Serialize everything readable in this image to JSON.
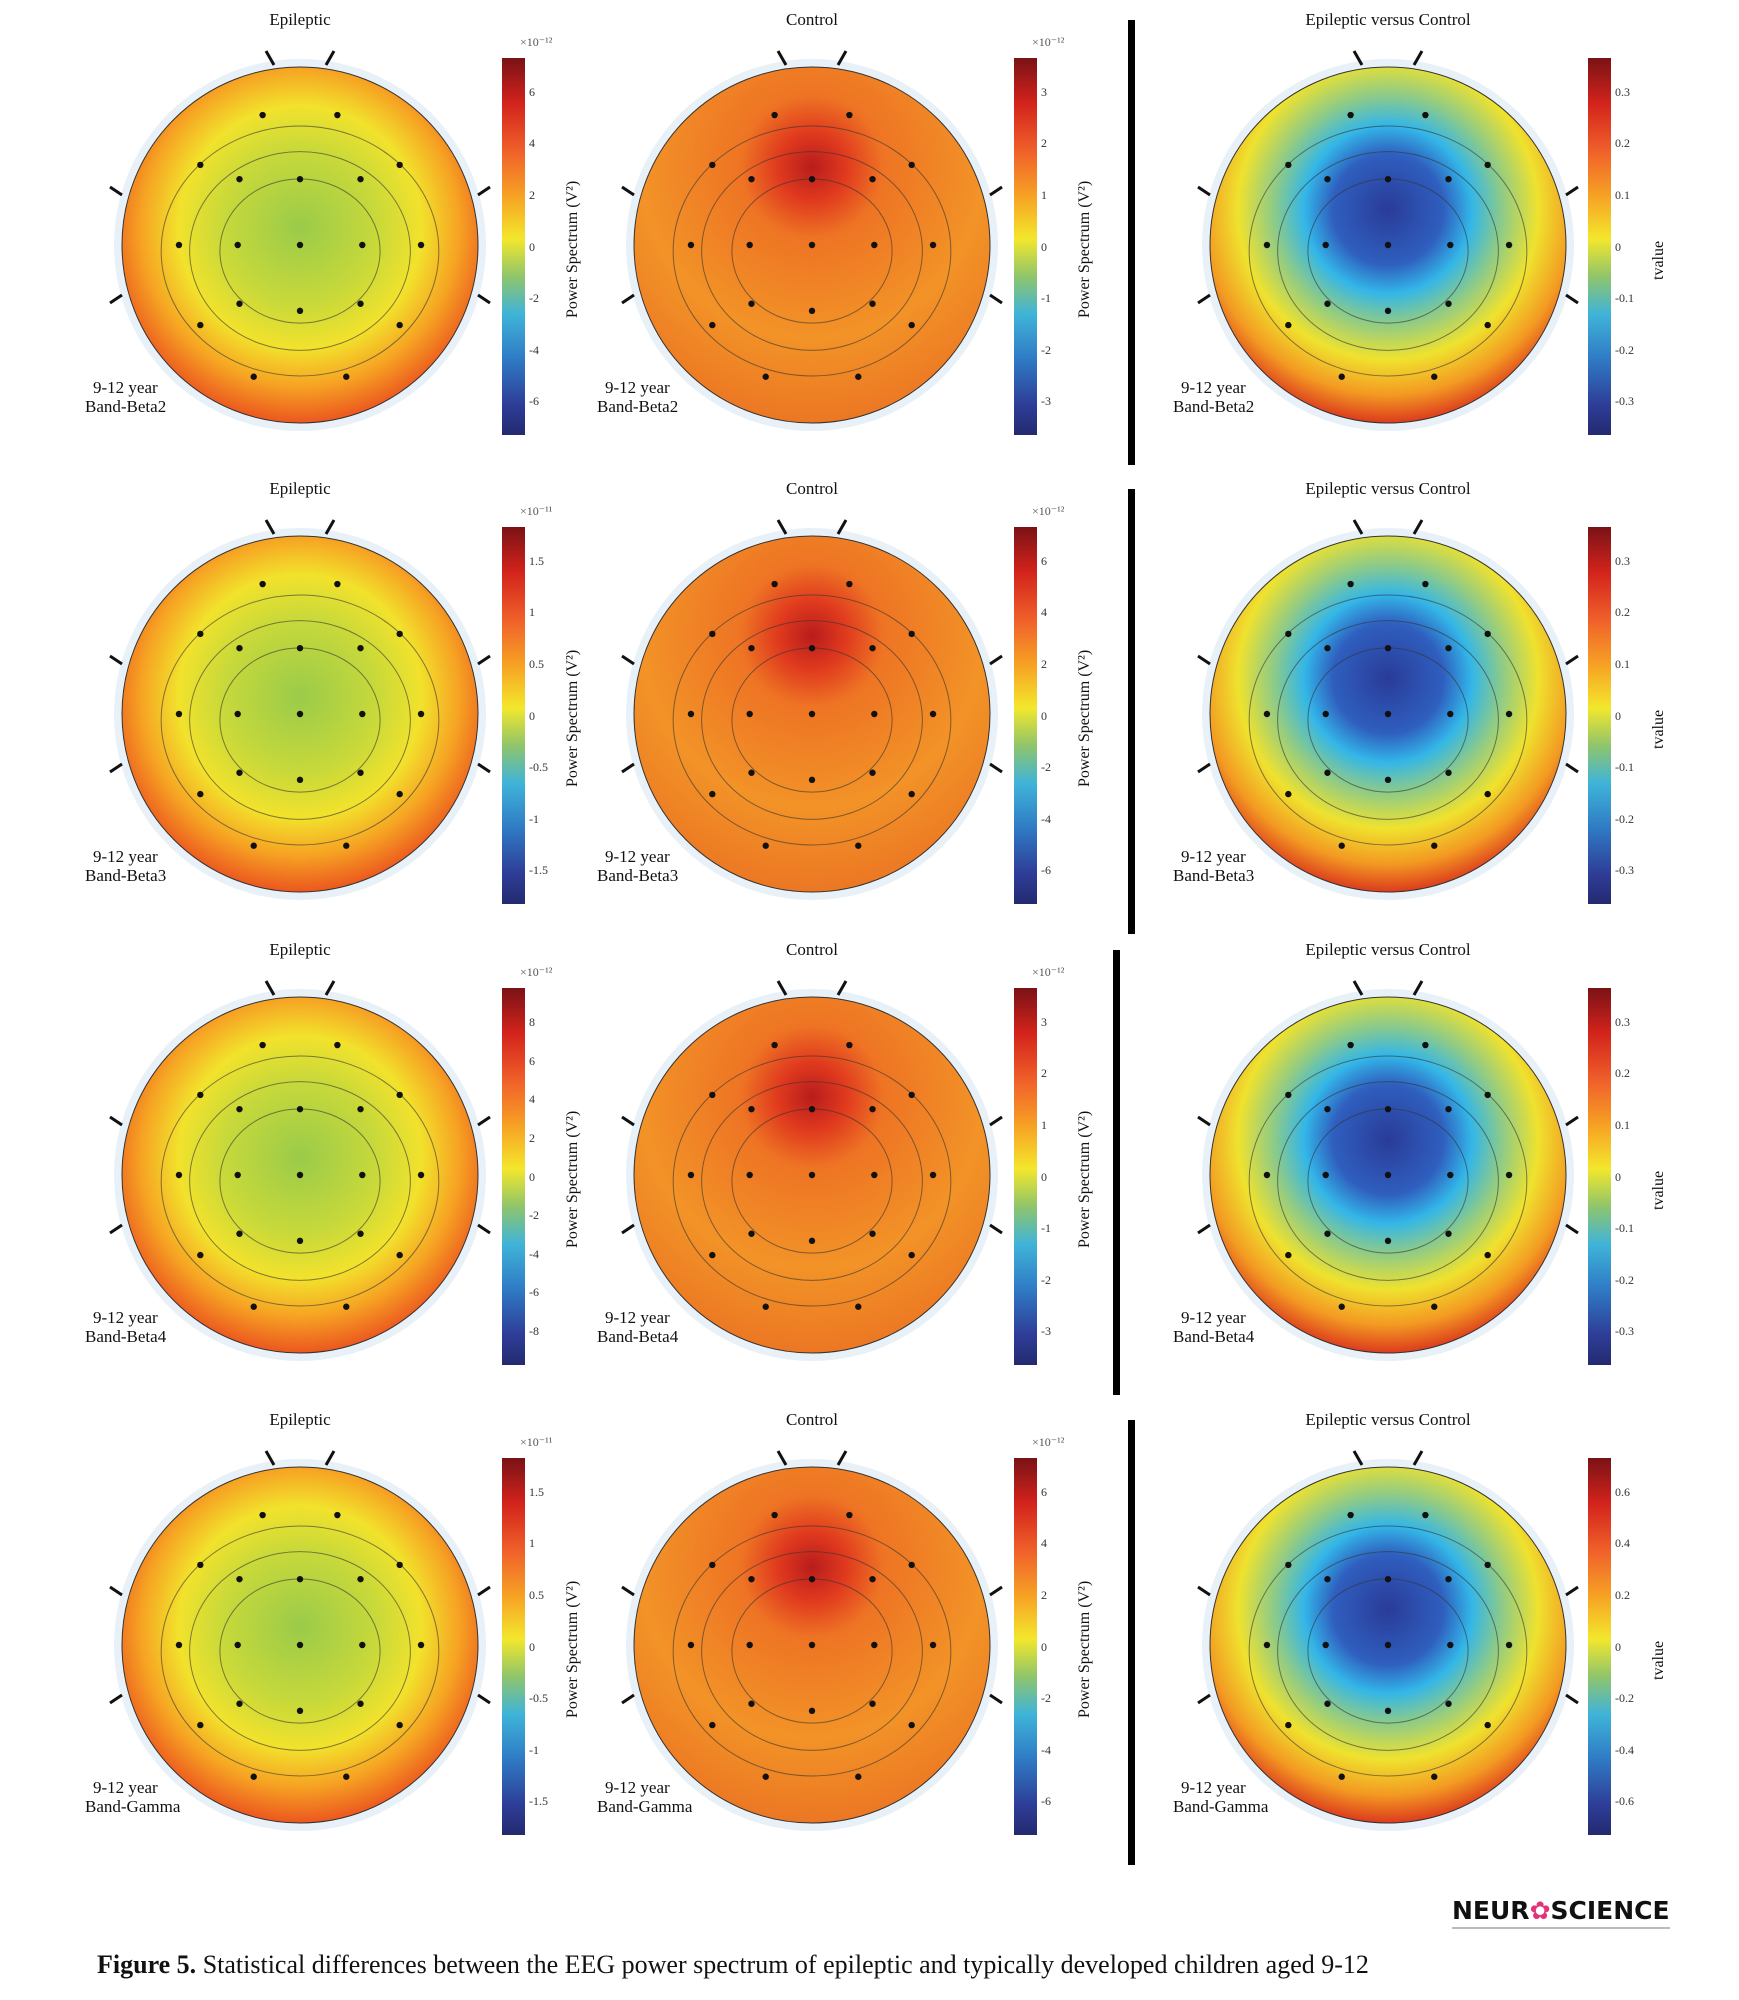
{
  "figure": {
    "rows": [
      {
        "age": "9-12 year",
        "band": "Band-Beta2",
        "panels": [
          {
            "kind": "epileptic",
            "title": "Epileptic",
            "cb_label": "Power Spectrum (V²)",
            "exponent": "×10⁻¹²",
            "ticks": [
              "6",
              "4",
              "2",
              "0",
              "-2",
              "-4",
              "-6"
            ]
          },
          {
            "kind": "control",
            "title": "Control",
            "cb_label": "Power Spectrum (V²)",
            "exponent": "×10⁻¹²",
            "ticks": [
              "3",
              "2",
              "1",
              "0",
              "-1",
              "-2",
              "-3"
            ]
          },
          {
            "kind": "versus",
            "title": "Epileptic versus Control",
            "cb_label": "tvalue",
            "exponent": "",
            "ticks": [
              "0.3",
              "0.2",
              "0.1",
              "0",
              "-0.1",
              "-0.2",
              "-0.3"
            ]
          }
        ]
      },
      {
        "age": "9-12 year",
        "band": "Band-Beta3",
        "panels": [
          {
            "kind": "epileptic",
            "title": "Epileptic",
            "cb_label": "Power Spectrum (V²)",
            "exponent": "×10⁻¹¹",
            "ticks": [
              "1.5",
              "1",
              "0.5",
              "0",
              "-0.5",
              "-1",
              "-1.5"
            ]
          },
          {
            "kind": "control",
            "title": "Control",
            "cb_label": "Power Spectrum (V²)",
            "exponent": "×10⁻¹²",
            "ticks": [
              "6",
              "4",
              "2",
              "0",
              "-2",
              "-4",
              "-6"
            ]
          },
          {
            "kind": "versus",
            "title": "Epileptic versus Control",
            "cb_label": "tvalue",
            "exponent": "",
            "ticks": [
              "0.3",
              "0.2",
              "0.1",
              "0",
              "-0.1",
              "-0.2",
              "-0.3"
            ]
          }
        ]
      },
      {
        "age": "9-12 year",
        "band": "Band-Beta4",
        "panels": [
          {
            "kind": "epileptic",
            "title": "Epileptic",
            "cb_label": "Power Spectrum (V²)",
            "exponent": "×10⁻¹²",
            "ticks": [
              "8",
              "6",
              "4",
              "2",
              "0",
              "-2",
              "-4",
              "-6",
              "-8"
            ]
          },
          {
            "kind": "control",
            "title": "Control",
            "cb_label": "Power Spectrum (V²)",
            "exponent": "×10⁻¹²",
            "ticks": [
              "3",
              "2",
              "1",
              "0",
              "-1",
              "-2",
              "-3"
            ]
          },
          {
            "kind": "versus",
            "title": "Epileptic versus Control",
            "cb_label": "tvalue",
            "exponent": "",
            "ticks": [
              "0.3",
              "0.2",
              "0.1",
              "0",
              "-0.1",
              "-0.2",
              "-0.3"
            ]
          }
        ]
      },
      {
        "age": "9-12 year",
        "band": "Band-Gamma",
        "panels": [
          {
            "kind": "epileptic",
            "title": "Epileptic",
            "cb_label": "Power Spectrum (V²)",
            "exponent": "×10⁻¹¹",
            "ticks": [
              "1.5",
              "1",
              "0.5",
              "0",
              "-0.5",
              "-1",
              "-1.5"
            ]
          },
          {
            "kind": "control",
            "title": "Control",
            "cb_label": "Power Spectrum (V²)",
            "exponent": "×10⁻¹²",
            "ticks": [
              "6",
              "4",
              "2",
              "0",
              "-2",
              "-4",
              "-6"
            ]
          },
          {
            "kind": "versus",
            "title": "Epileptic versus Control",
            "cb_label": "tvalue",
            "exponent": "",
            "ticks": [
              "0.6",
              "0.4",
              "0.2",
              "0",
              "-0.2",
              "-0.4",
              "-0.6"
            ]
          }
        ]
      }
    ]
  },
  "logo": {
    "left": "NEUR",
    "right": "SCIENCE"
  },
  "caption": {
    "label": "Figure 5.",
    "text": " Statistical differences between the EEG power spectrum of epileptic and typically developed children aged 9-12"
  }
}
